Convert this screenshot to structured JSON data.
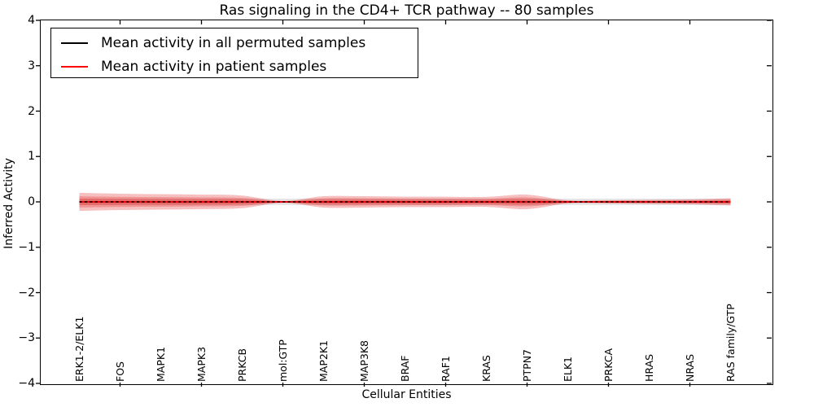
{
  "figure": {
    "background": "#ffffff"
  },
  "chart_data": {
    "type": "line",
    "title": "Ras signaling in the CD4+ TCR pathway -- 80 samples",
    "xlabel": "Cellular Entities",
    "ylabel": "Inferred Activity",
    "ylim": [
      -4,
      4
    ],
    "yticks": [
      4,
      3,
      2,
      1,
      0,
      -1,
      -2,
      -3,
      -4
    ],
    "ytick_labels": [
      "4",
      "3",
      "2",
      "1",
      "0",
      "−1",
      "−2",
      "−3",
      "−4"
    ],
    "categories": [
      "ERK1-2/ELK1",
      "FOS",
      "MAPK1",
      "MAPK3",
      "PRKCB",
      "mol:GTP",
      "MAP2K1",
      "MAP3K8",
      "BRAF",
      "RAF1",
      "KRAS",
      "PTPN7",
      "ELK1",
      "PRKCA",
      "HRAS",
      "NRAS",
      "RAS family/GTP"
    ],
    "grid": false,
    "legend_position": "upper left",
    "axis_color": "#000000",
    "series": [
      {
        "name": "Mean activity in all permuted samples",
        "color": "#000000",
        "line_style": "dashed",
        "values": [
          0,
          0,
          0,
          0,
          0,
          0,
          0,
          0,
          0,
          0,
          0,
          0,
          0,
          0,
          0,
          0,
          0
        ],
        "band_halfwidth": [
          0.07,
          0.07,
          0.07,
          0.07,
          0.07,
          0.07,
          0.07,
          0.07,
          0.07,
          0.07,
          0.07,
          0.07,
          0.07,
          0.07,
          0.07,
          0.07,
          0.07
        ],
        "band_color": "#c9c9c9",
        "band_alpha": 0.5
      },
      {
        "name": "Mean activity in patient samples",
        "color": "#ff0000",
        "line_style": "solid",
        "values": [
          0,
          0,
          0,
          0,
          0,
          0,
          0,
          0,
          0,
          0,
          0,
          0,
          0,
          0,
          0,
          0,
          0
        ],
        "band_halfwidth": [
          0.2,
          0.18,
          0.17,
          0.16,
          0.14,
          0.02,
          0.125,
          0.125,
          0.115,
          0.115,
          0.11,
          0.16,
          0.035,
          0.035,
          0.045,
          0.055,
          0.08
        ],
        "band_color": "#e03030",
        "band_alpha": 0.3
      }
    ]
  }
}
